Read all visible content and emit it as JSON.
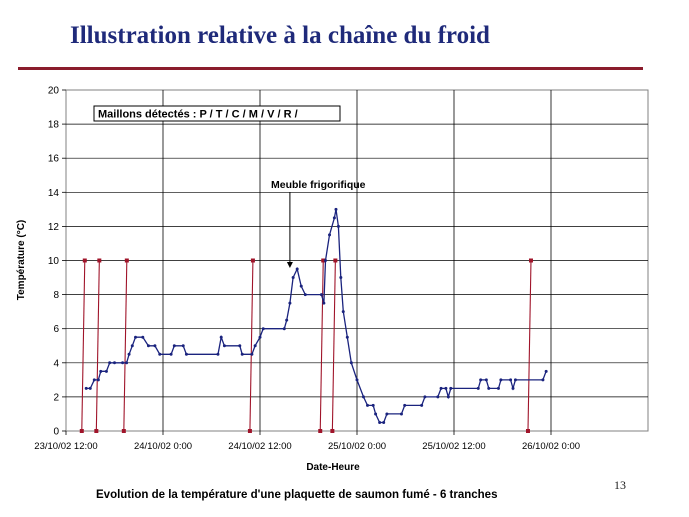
{
  "slide": {
    "title": "Illustration relative à la chaîne du froid",
    "page_number": "13",
    "caption": "Evolution de la température d'une plaquette de saumon fumé - 6 tranches"
  },
  "colors": {
    "title": "#1f2a7a",
    "rule": "#8a1c2c",
    "series": "#1a237e",
    "links": "#a0142a"
  },
  "chart_data": {
    "type": "line",
    "xlabel": "Date-Heure",
    "ylabel": "Température (°C)",
    "ylim": [
      0,
      20
    ],
    "y_ticks": [
      0,
      2,
      4,
      6,
      8,
      10,
      12,
      14,
      16,
      18,
      20
    ],
    "x_hours_range": [
      0,
      72
    ],
    "x_ticks": [
      {
        "h": 0,
        "label": "23/10/02 12:00"
      },
      {
        "h": 12,
        "label": "24/10/02 0:00"
      },
      {
        "h": 24,
        "label": "24/10/02 12:00"
      },
      {
        "h": 36,
        "label": "25/10/02 0:00"
      },
      {
        "h": 48,
        "label": "25/10/02 12:00"
      },
      {
        "h": 60,
        "label": "26/10/02 0:00"
      }
    ],
    "grid": "vertical at x ticks, horizontal at y ticks",
    "annotations": {
      "box": "Maillons détectés : P / T / C / M / V / R /",
      "arrow_label": "Meuble frigorifique",
      "arrow_h": 27.7,
      "arrow_y": 9.5
    },
    "series": [
      {
        "points": [
          [
            2.5,
            2.5
          ],
          [
            3.0,
            2.5
          ],
          [
            3.5,
            3.0
          ],
          [
            4.0,
            3.0
          ],
          [
            4.3,
            3.5
          ],
          [
            5.0,
            3.5
          ],
          [
            5.4,
            4.0
          ],
          [
            6.0,
            4.0
          ],
          [
            7.0,
            4.0
          ],
          [
            7.5,
            4.0
          ],
          [
            7.8,
            4.5
          ],
          [
            8.2,
            5.0
          ],
          [
            8.6,
            5.5
          ],
          [
            9.5,
            5.5
          ],
          [
            10.2,
            5.0
          ],
          [
            11.0,
            5.0
          ],
          [
            11.6,
            4.5
          ],
          [
            13.0,
            4.5
          ],
          [
            13.4,
            5.0
          ],
          [
            14.5,
            5.0
          ],
          [
            14.9,
            4.5
          ],
          [
            18.8,
            4.5
          ],
          [
            19.2,
            5.5
          ],
          [
            19.6,
            5.0
          ],
          [
            21.5,
            5.0
          ],
          [
            21.8,
            4.5
          ],
          [
            23.0,
            4.5
          ],
          [
            23.4,
            5.0
          ],
          [
            24.0,
            5.5
          ],
          [
            24.4,
            6.0
          ],
          [
            27.0,
            6.0
          ],
          [
            27.3,
            6.5
          ],
          [
            27.7,
            7.5
          ],
          [
            28.1,
            9.0
          ],
          [
            28.6,
            9.5
          ],
          [
            29.1,
            8.5
          ],
          [
            29.6,
            8.0
          ],
          [
            31.6,
            8.0
          ],
          [
            31.9,
            7.5
          ],
          [
            32.1,
            10.0
          ],
          [
            32.6,
            11.5
          ],
          [
            33.2,
            12.5
          ],
          [
            33.4,
            13.0
          ],
          [
            33.7,
            12.0
          ],
          [
            34.0,
            9.0
          ],
          [
            34.3,
            7.0
          ],
          [
            34.8,
            5.5
          ],
          [
            35.3,
            4.0
          ],
          [
            36.0,
            3.0
          ],
          [
            36.8,
            2.0
          ],
          [
            37.3,
            1.5
          ],
          [
            38.0,
            1.5
          ],
          [
            38.3,
            1.0
          ],
          [
            38.8,
            0.5
          ],
          [
            39.3,
            0.5
          ],
          [
            39.7,
            1.0
          ],
          [
            41.5,
            1.0
          ],
          [
            41.9,
            1.5
          ],
          [
            44.0,
            1.5
          ],
          [
            44.4,
            2.0
          ],
          [
            46.0,
            2.0
          ],
          [
            46.4,
            2.5
          ],
          [
            47.0,
            2.5
          ],
          [
            47.3,
            2.0
          ],
          [
            47.6,
            2.5
          ],
          [
            51.0,
            2.5
          ],
          [
            51.3,
            3.0
          ],
          [
            52.0,
            3.0
          ],
          [
            52.3,
            2.5
          ],
          [
            53.5,
            2.5
          ],
          [
            53.8,
            3.0
          ],
          [
            55.0,
            3.0
          ],
          [
            55.3,
            2.5
          ],
          [
            55.6,
            3.0
          ],
          [
            59.0,
            3.0
          ],
          [
            59.4,
            3.5
          ]
        ]
      }
    ],
    "event_lines": [
      {
        "h": 2.2,
        "y_top": 10,
        "y_bottom": 0
      },
      {
        "h": 4.0,
        "y_top": 10,
        "y_bottom": 0
      },
      {
        "h": 7.4,
        "y_top": 10,
        "y_bottom": 0
      },
      {
        "h": 23.0,
        "y_top": 10,
        "y_bottom": 0
      },
      {
        "h": 31.7,
        "y_top": 10,
        "y_bottom": 0
      },
      {
        "h": 33.2,
        "y_top": 10,
        "y_bottom": 0
      },
      {
        "h": 57.4,
        "y_top": 10,
        "y_bottom": 0
      }
    ]
  }
}
